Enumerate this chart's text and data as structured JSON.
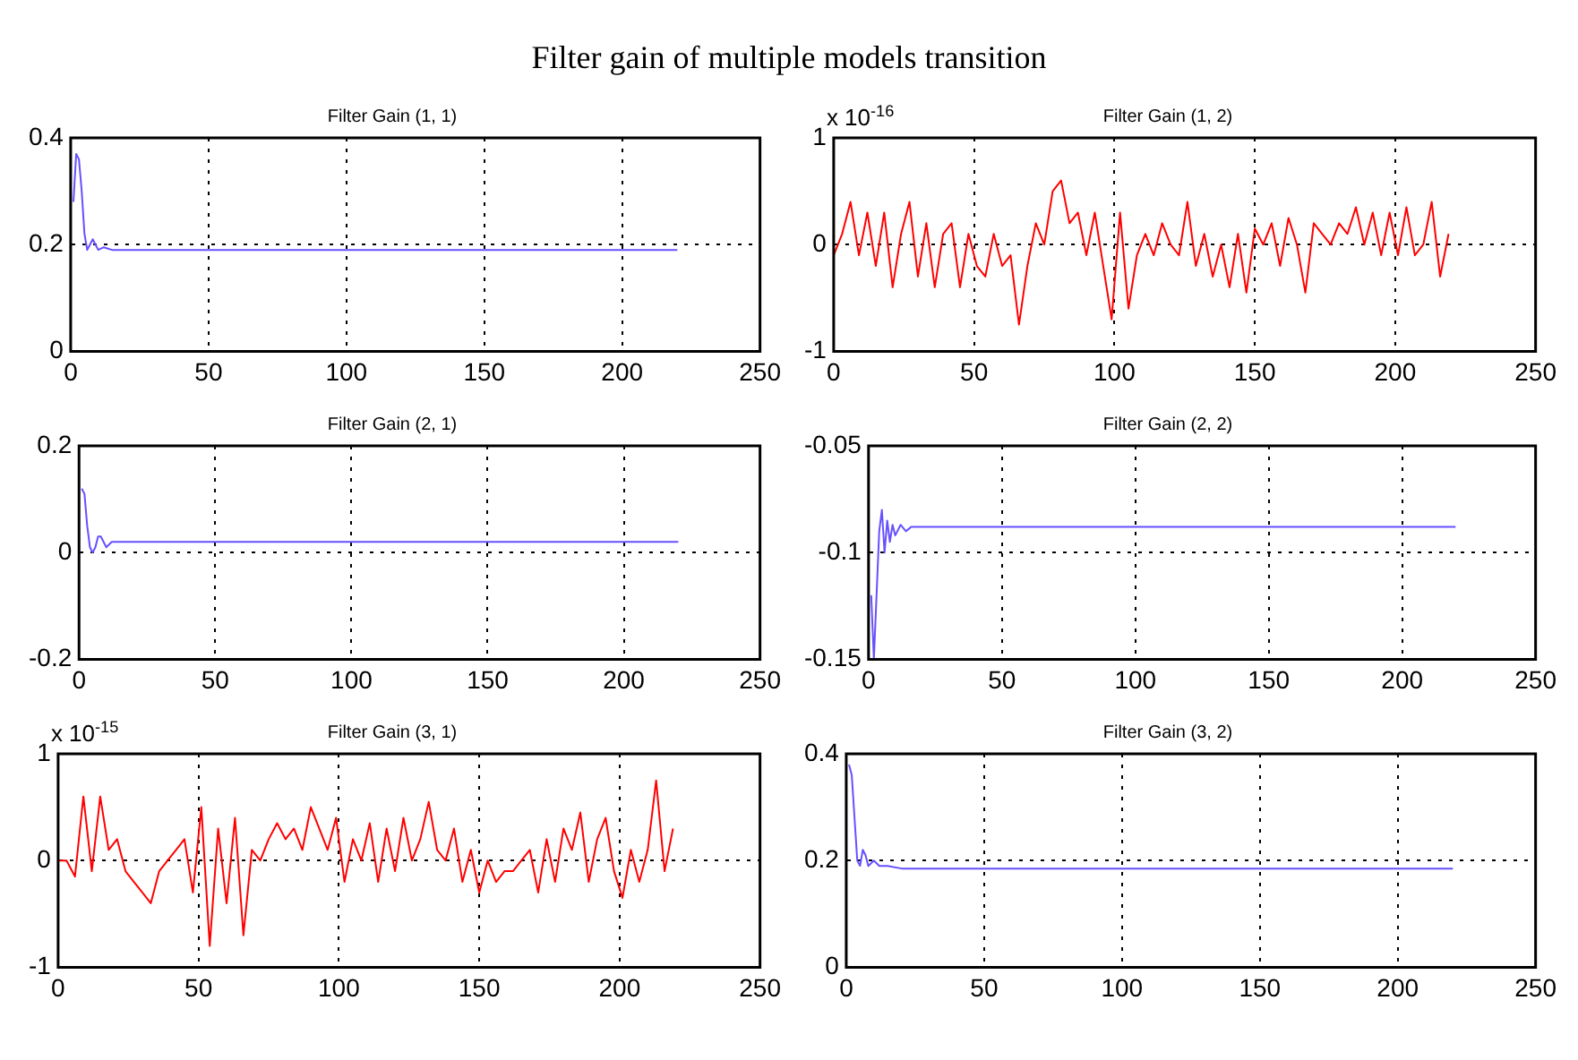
{
  "chart_data": [
    {
      "type": "other",
      "title": "Filter gain of multiple models transition"
    },
    {
      "type": "line",
      "title": "Filter Gain (1, 1)",
      "x": [
        1,
        2,
        3,
        4,
        5,
        6,
        7,
        8,
        9,
        10,
        12,
        15,
        220
      ],
      "values": [
        0.28,
        0.37,
        0.36,
        0.3,
        0.22,
        0.19,
        0.2,
        0.21,
        0.2,
        0.19,
        0.195,
        0.19,
        0.19
      ],
      "color": "#6650ff",
      "xlim": [
        0,
        250
      ],
      "xticks": [
        0,
        50,
        100,
        150,
        200,
        250
      ],
      "ylim": [
        0,
        0.4
      ],
      "yticks": [
        0,
        0.2,
        0.4
      ],
      "grid": true,
      "line_style": "solid"
    },
    {
      "type": "line",
      "title": "Filter Gain (1, 2)",
      "annotations": [
        "x 10$^{-16}$"
      ],
      "x": [
        0,
        3,
        6,
        9,
        12,
        15,
        18,
        21,
        24,
        27,
        30,
        33,
        36,
        39,
        42,
        45,
        48,
        51,
        54,
        57,
        60,
        63,
        66,
        69,
        72,
        75,
        78,
        81,
        84,
        87,
        90,
        93,
        96,
        99,
        102,
        105,
        108,
        111,
        114,
        117,
        120,
        123,
        126,
        129,
        132,
        135,
        138,
        141,
        144,
        147,
        150,
        153,
        156,
        159,
        162,
        165,
        168,
        171,
        174,
        177,
        180,
        183,
        186,
        189,
        192,
        195,
        198,
        201,
        204,
        207,
        210,
        213,
        216,
        219
      ],
      "values": [
        -0.1,
        0.1,
        0.4,
        -0.1,
        0.3,
        -0.2,
        0.3,
        -0.4,
        0.1,
        0.4,
        -0.3,
        0.2,
        -0.4,
        0.1,
        0.2,
        -0.4,
        0.1,
        -0.2,
        -0.3,
        0.1,
        -0.2,
        -0.1,
        -0.75,
        -0.2,
        0.2,
        0.0,
        0.5,
        0.6,
        0.2,
        0.3,
        -0.1,
        0.3,
        -0.2,
        -0.7,
        0.3,
        -0.6,
        -0.1,
        0.1,
        -0.1,
        0.2,
        0.0,
        -0.1,
        0.4,
        -0.2,
        0.1,
        -0.3,
        0.0,
        -0.4,
        0.1,
        -0.45,
        0.15,
        0.0,
        0.2,
        -0.2,
        0.25,
        0.0,
        -0.45,
        0.2,
        0.1,
        0.0,
        0.2,
        0.1,
        0.35,
        0.0,
        0.3,
        -0.1,
        0.3,
        -0.1,
        0.35,
        -0.1,
        0.0,
        0.4,
        -0.3,
        0.1
      ],
      "color": "#ff0000",
      "xlim": [
        0,
        250
      ],
      "xticks": [
        0,
        50,
        100,
        150,
        200,
        250
      ],
      "ylim": [
        -1,
        1
      ],
      "yticks": [
        -1,
        0,
        1
      ],
      "grid": true,
      "line_style": "solid"
    },
    {
      "type": "line",
      "title": "Filter Gain (2, 1)",
      "x": [
        1,
        2,
        3,
        4,
        5,
        6,
        7,
        8,
        9,
        10,
        12,
        15,
        220
      ],
      "values": [
        0.12,
        0.11,
        0.05,
        0.01,
        0.0,
        0.01,
        0.03,
        0.03,
        0.02,
        0.01,
        0.02,
        0.02,
        0.02
      ],
      "color": "#6650ff",
      "xlim": [
        0,
        250
      ],
      "xticks": [
        0,
        50,
        100,
        150,
        200,
        250
      ],
      "ylim": [
        -0.2,
        0.2
      ],
      "yticks": [
        -0.2,
        0,
        0.2
      ],
      "grid": true,
      "line_style": "solid"
    },
    {
      "type": "line",
      "title": "Filter Gain (2, 2)",
      "x": [
        1,
        2,
        3,
        4,
        5,
        6,
        7,
        8,
        9,
        10,
        12,
        14,
        16,
        220
      ],
      "values": [
        -0.12,
        -0.15,
        -0.12,
        -0.09,
        -0.08,
        -0.1,
        -0.085,
        -0.095,
        -0.087,
        -0.092,
        -0.087,
        -0.09,
        -0.088,
        -0.088
      ],
      "color": "#6650ff",
      "xlim": [
        0,
        250
      ],
      "xticks": [
        0,
        50,
        100,
        150,
        200,
        250
      ],
      "ylim": [
        -0.15,
        -0.05
      ],
      "yticks": [
        -0.15,
        -0.1,
        -0.05
      ],
      "grid": true,
      "line_style": "solid"
    },
    {
      "type": "line",
      "title": "Filter Gain (3, 1)",
      "annotations": [
        "x 10$^{-15}$"
      ],
      "x": [
        0,
        3,
        6,
        9,
        12,
        15,
        18,
        21,
        24,
        27,
        30,
        33,
        36,
        39,
        42,
        45,
        48,
        51,
        54,
        57,
        60,
        63,
        66,
        69,
        72,
        75,
        78,
        81,
        84,
        87,
        90,
        93,
        96,
        99,
        102,
        105,
        108,
        111,
        114,
        117,
        120,
        123,
        126,
        129,
        132,
        135,
        138,
        141,
        144,
        147,
        150,
        153,
        156,
        159,
        162,
        165,
        168,
        171,
        174,
        177,
        180,
        183,
        186,
        189,
        192,
        195,
        198,
        201,
        204,
        207,
        210,
        213,
        216,
        219
      ],
      "values": [
        0,
        0,
        -0.15,
        0.6,
        -0.1,
        0.6,
        0.1,
        0.2,
        -0.1,
        -0.2,
        -0.3,
        -0.4,
        -0.1,
        0.0,
        0.1,
        0.2,
        -0.3,
        0.5,
        -0.8,
        0.3,
        -0.4,
        0.4,
        -0.7,
        0.1,
        0.0,
        0.2,
        0.35,
        0.2,
        0.3,
        0.1,
        0.5,
        0.3,
        0.1,
        0.4,
        -0.2,
        0.2,
        0.0,
        0.35,
        -0.2,
        0.3,
        -0.1,
        0.4,
        0.0,
        0.2,
        0.55,
        0.1,
        0.0,
        0.3,
        -0.2,
        0.1,
        -0.3,
        0.0,
        -0.2,
        -0.1,
        -0.1,
        0.0,
        0.1,
        -0.3,
        0.2,
        -0.2,
        0.3,
        0.1,
        0.45,
        -0.2,
        0.2,
        0.4,
        -0.1,
        -0.35,
        0.1,
        -0.2,
        0.1,
        0.75,
        -0.1,
        0.3
      ],
      "color": "#ff0000",
      "xlim": [
        0,
        250
      ],
      "xticks": [
        0,
        50,
        100,
        150,
        200,
        250
      ],
      "ylim": [
        -1,
        1
      ],
      "yticks": [
        -1,
        0,
        1
      ],
      "grid": true,
      "line_style": "solid"
    },
    {
      "type": "line",
      "title": "Filter Gain (3, 2)",
      "x": [
        1,
        2,
        3,
        4,
        5,
        6,
        7,
        8,
        10,
        12,
        15,
        20,
        220
      ],
      "values": [
        0.38,
        0.36,
        0.28,
        0.2,
        0.19,
        0.22,
        0.21,
        0.19,
        0.2,
        0.19,
        0.19,
        0.185,
        0.185
      ],
      "color": "#6650ff",
      "xlim": [
        0,
        250
      ],
      "xticks": [
        0,
        50,
        100,
        150,
        200,
        250
      ],
      "ylim": [
        0,
        0.4
      ],
      "yticks": [
        0,
        0.2,
        0.4
      ],
      "grid": true,
      "line_style": "solid"
    }
  ]
}
